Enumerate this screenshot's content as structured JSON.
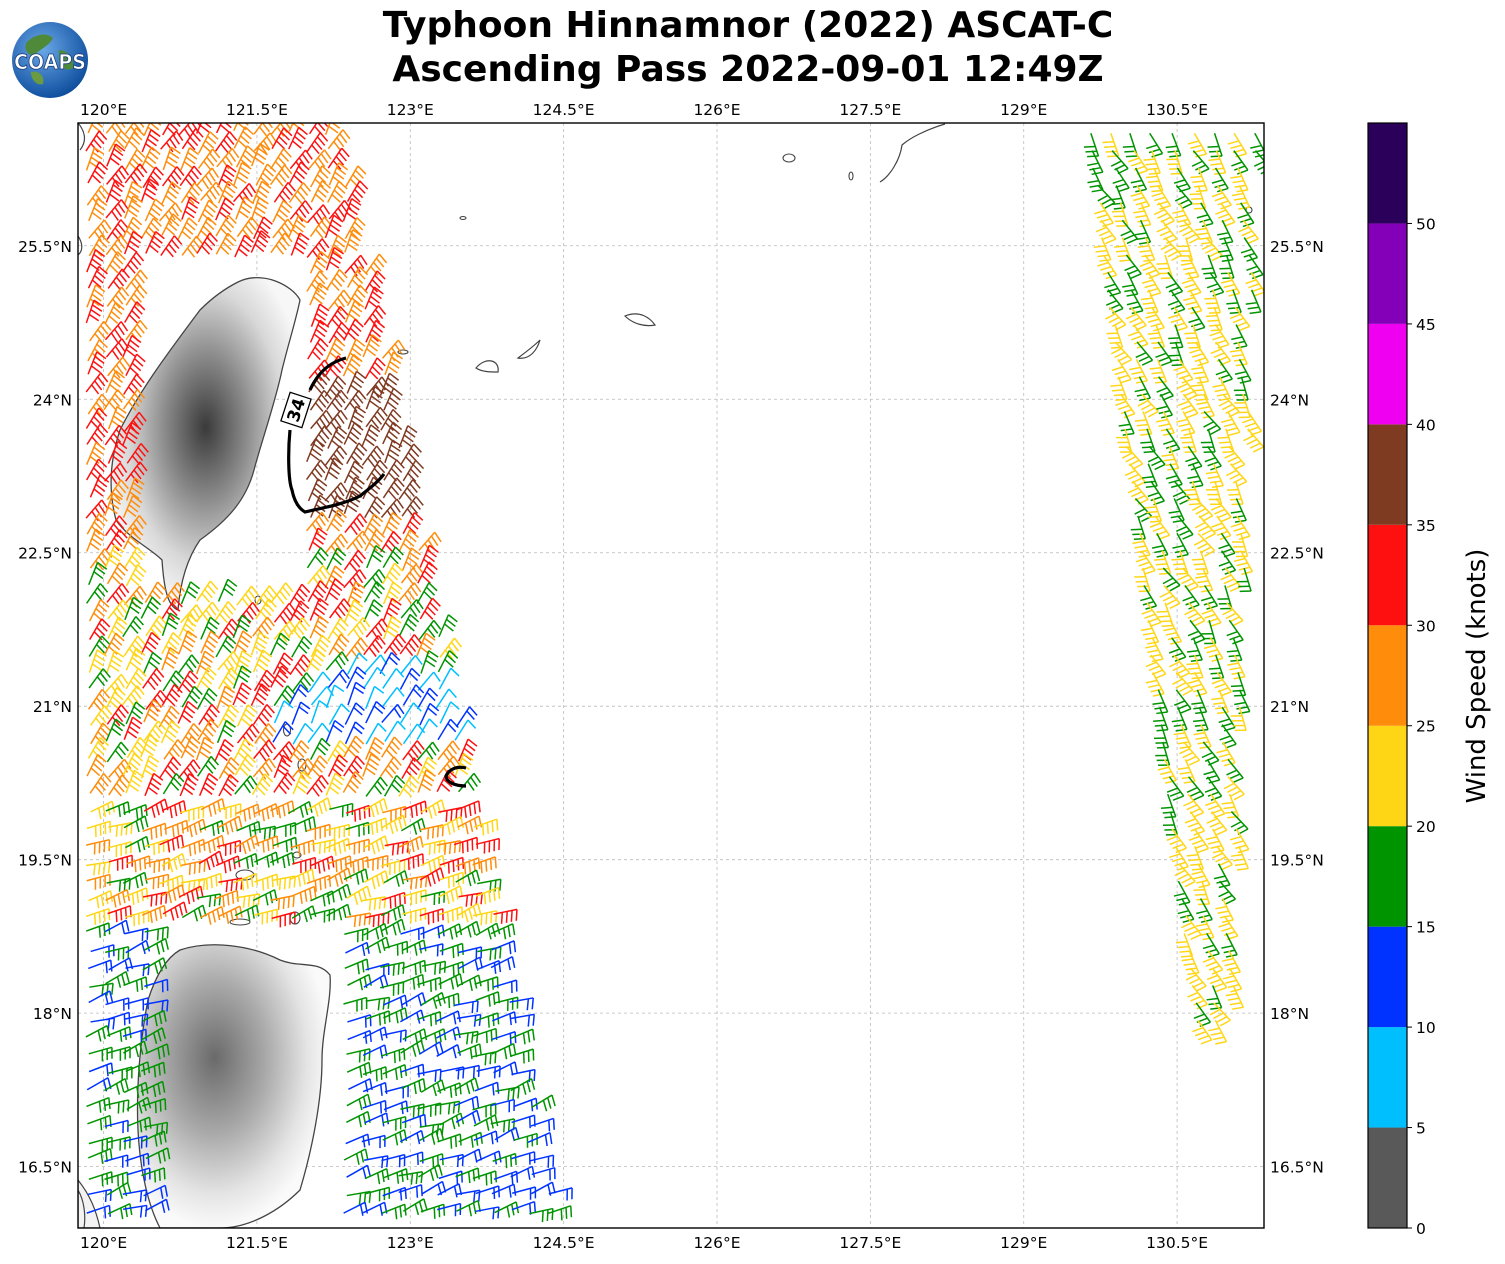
{
  "title": {
    "line1": "Typhoon Hinnamnor (2022) ASCAT-C",
    "line2": "Ascending Pass 2022-09-01 12:49Z"
  },
  "logo": {
    "text": "COAPS",
    "icon": "globe-logo-icon"
  },
  "map": {
    "lon_range": [
      119.75,
      131.35
    ],
    "lat_range": [
      15.9,
      26.7
    ],
    "lon_ticks": [
      "120°E",
      "121.5°E",
      "123°E",
      "124.5°E",
      "126°E",
      "127.5°E",
      "129°E",
      "130.5°E"
    ],
    "lon_tick_values": [
      120,
      121.5,
      123,
      124.5,
      126,
      127.5,
      129,
      130.5
    ],
    "lat_ticks": [
      "25.5°N",
      "24°N",
      "22.5°N",
      "21°N",
      "19.5°N",
      "18°N",
      "16.5°N"
    ],
    "lat_tick_values": [
      25.5,
      24,
      22.5,
      21,
      19.5,
      18,
      16.5
    ],
    "gridlines": true,
    "wind_radius_label": "34",
    "wind_radius_kt": 34
  },
  "colorbar": {
    "label": "Wind Speed (knots)",
    "tick_labels": [
      "0",
      "5",
      "10",
      "15",
      "20",
      "25",
      "30",
      "35",
      "40",
      "45",
      "50"
    ],
    "bins": [
      {
        "from": 0,
        "to": 5,
        "color": "#595959"
      },
      {
        "from": 5,
        "to": 10,
        "color": "#00bfff"
      },
      {
        "from": 10,
        "to": 15,
        "color": "#0033ff"
      },
      {
        "from": 15,
        "to": 20,
        "color": "#009400"
      },
      {
        "from": 20,
        "to": 25,
        "color": "#ffd616"
      },
      {
        "from": 25,
        "to": 30,
        "color": "#ff8c0a"
      },
      {
        "from": 30,
        "to": 35,
        "color": "#ff1010"
      },
      {
        "from": 35,
        "to": 40,
        "color": "#7f3a22"
      },
      {
        "from": 40,
        "to": 45,
        "color": "#f000f0"
      },
      {
        "from": 45,
        "to": 50,
        "color": "#8400b8"
      },
      {
        "from": 50,
        "to": 55,
        "color": "#2b005a"
      }
    ]
  },
  "colors": {
    "land_edge": "#444444",
    "grid": "#bbbbbb",
    "radius_line": "#000000"
  }
}
